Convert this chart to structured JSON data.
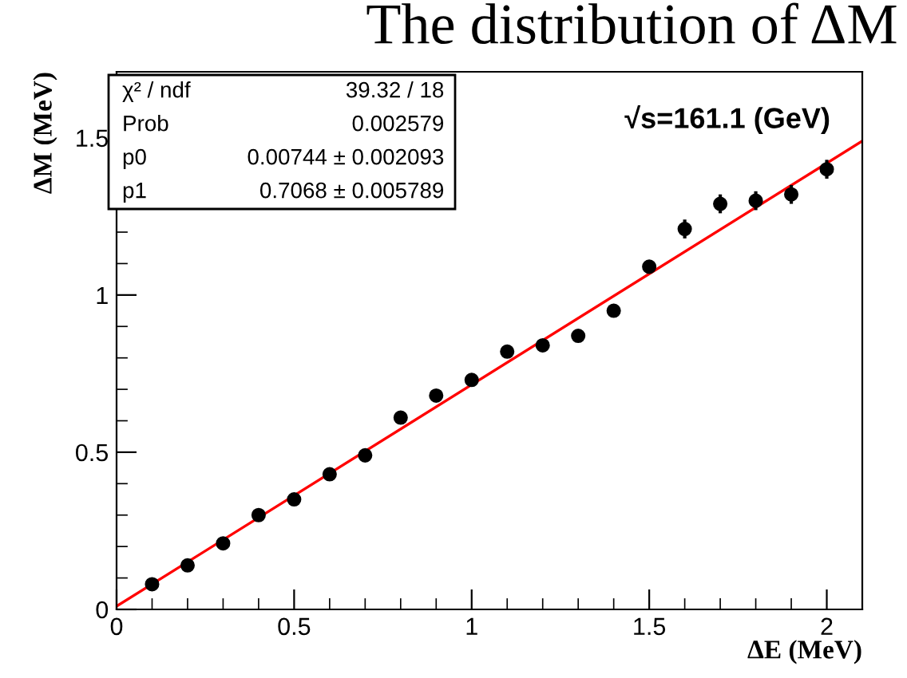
{
  "chart_data": {
    "type": "scatter",
    "title": "The distribution of ΔM",
    "xlabel": "ΔE (MeV)",
    "ylabel": "ΔM (MeV)",
    "xlim": [
      0,
      2.1
    ],
    "ylim": [
      0,
      1.71
    ],
    "xticks": [
      0,
      0.5,
      1,
      1.5,
      2
    ],
    "yticks": [
      0,
      0.5,
      1,
      1.5
    ],
    "grid": false,
    "legend": false,
    "series": [
      {
        "marker": "circle",
        "color": "#000000",
        "x": [
          0.1,
          0.2,
          0.3,
          0.4,
          0.5,
          0.6,
          0.7,
          0.8,
          0.9,
          1.0,
          1.1,
          1.2,
          1.3,
          1.4,
          1.5,
          1.6,
          1.7,
          1.8,
          1.9,
          2.0
        ],
        "values": [
          0.08,
          0.14,
          0.21,
          0.3,
          0.35,
          0.43,
          0.49,
          0.61,
          0.68,
          0.73,
          0.82,
          0.84,
          0.87,
          0.95,
          1.09,
          1.21,
          1.29,
          1.3,
          1.32,
          1.4
        ],
        "errors": [
          0.01,
          0.01,
          0.01,
          0.01,
          0.01,
          0.01,
          0.01,
          0.01,
          0.01,
          0.01,
          0.01,
          0.01,
          0.02,
          0.02,
          0.02,
          0.03,
          0.03,
          0.03,
          0.03,
          0.03
        ]
      },
      {
        "type": "line",
        "color": "#ff0000",
        "x": [
          0,
          2.1
        ],
        "values": [
          0.01,
          1.49
        ]
      }
    ],
    "annotations": [
      "χ² / ndf",
      "39.32 / 18",
      "Prob",
      "0.002579",
      "p0",
      "0.00744 ± 0.002093",
      "p1",
      "0.7068 ± 0.005789",
      "√s=161.1 (GeV)"
    ]
  }
}
